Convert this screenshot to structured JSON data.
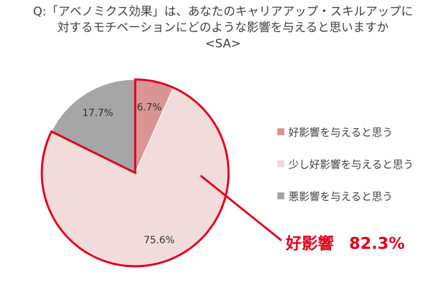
{
  "title": {
    "line1": "Q:「アベノミクス効果」は、あなたのキャリアアップ・スキルアップに",
    "line2": "対するモチベーションにどのような影響を与えると思いますか",
    "line3": "<SA>"
  },
  "chart_data": {
    "type": "pie",
    "start": "12 o'clock, clockwise",
    "slices": [
      {
        "label": "好影響を与えると思う",
        "value": 6.7,
        "value_label": "6.7%",
        "color": "#d99594"
      },
      {
        "label": "少し好影響を与えると思う",
        "value": 75.6,
        "value_label": "75.6%",
        "color": "#f2dcdb"
      },
      {
        "label": "悪影響を与えると思う",
        "value": 17.7,
        "value_label": "17.7%",
        "color": "#a6a6a6"
      }
    ],
    "legend_position": "right",
    "highlight": {
      "slices": [
        0,
        1
      ],
      "outline_color": "#e0001b",
      "label": "好影響",
      "value_label": "82.3%"
    }
  }
}
